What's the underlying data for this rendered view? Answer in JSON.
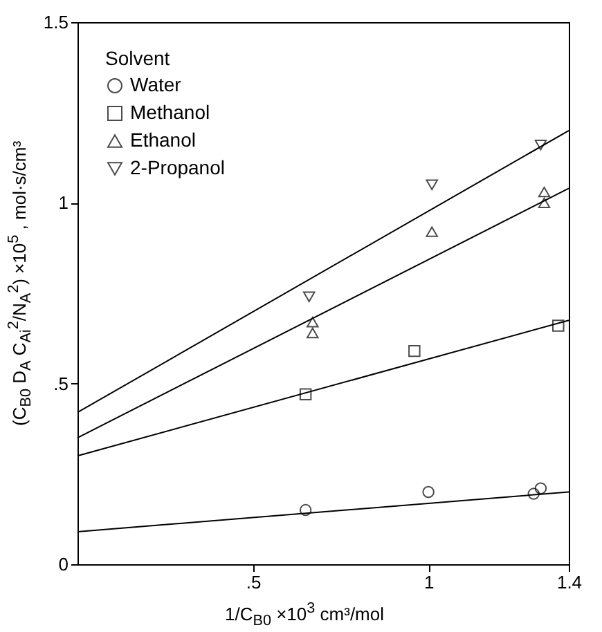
{
  "chart_data": {
    "type": "scatter",
    "xlabel": "1/C$_{B0}$ ×10$^{3}$  cm³/mol",
    "ylabel": "(C$_{B0}$ D$_{A}$ C$_{Ai}$$^{2}$/N$_{A}$$^{2}$) ×10$^{5}$ ,  mol·s/cm³",
    "legend_title": "Solvent",
    "legend": "top left",
    "grid": false,
    "xlim": [
      0,
      1.4
    ],
    "xticks": [
      {
        "value": 0.5,
        "label": ".5"
      },
      1,
      1.4
    ],
    "ylim": [
      0,
      1.5
    ],
    "yticks": [
      0,
      {
        "value": 0.5,
        "label": ".5"
      },
      1,
      1.5
    ],
    "series": [
      {
        "name": "Water",
        "marker": "circle",
        "color": "#000000",
        "x": [
          0.65,
          1.0,
          1.3,
          1.32
        ],
        "values": [
          0.15,
          0.2,
          0.195,
          0.21
        ]
      },
      {
        "name": "Methanol",
        "marker": "square",
        "color": "#000000",
        "x": [
          0.65,
          0.96,
          1.37
        ],
        "values": [
          0.47,
          0.59,
          0.66
        ]
      },
      {
        "name": "Ethanol",
        "marker": "triangle",
        "color": "#000000",
        "x": [
          0.67,
          0.67,
          1.01,
          1.33,
          1.33
        ],
        "values": [
          0.64,
          0.67,
          0.92,
          1.03,
          1.0
        ]
      },
      {
        "name": "2-Propanol",
        "marker": "triangle-down",
        "color": "#000000",
        "x": [
          0.66,
          1.01,
          1.32
        ],
        "values": [
          0.74,
          1.05,
          1.16
        ]
      },
      {
        "type": "line",
        "color": "#000000",
        "x": [
          0,
          1.4
        ],
        "values": [
          0.09,
          0.2
        ]
      },
      {
        "type": "line",
        "color": "#000000",
        "x": [
          0,
          1.4
        ],
        "values": [
          0.3,
          0.675
        ]
      },
      {
        "type": "line",
        "color": "#000000",
        "x": [
          0,
          1.4
        ],
        "values": [
          0.35,
          1.04
        ]
      },
      {
        "type": "line",
        "color": "#000000",
        "x": [
          0,
          1.4
        ],
        "values": [
          0.42,
          1.2
        ]
      }
    ]
  }
}
